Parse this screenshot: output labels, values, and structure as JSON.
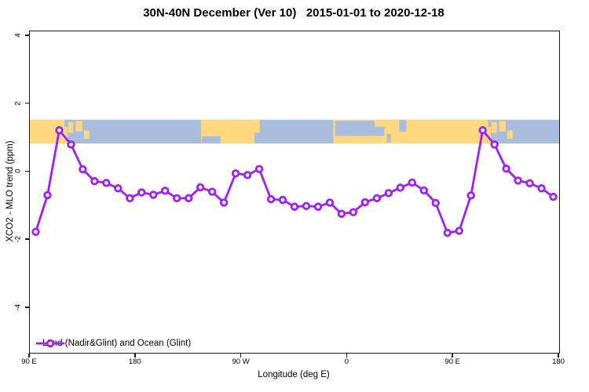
{
  "chart_data": {
    "type": "line",
    "title": "30N-40N December (Ver 10)   2015-01-01 to 2020-12-18",
    "xlabel": "Longitude (deg E)",
    "ylabel": "XCO2 - MLO trend (ppm)",
    "xlim": [
      90,
      540
    ],
    "ylim": [
      -5.32,
      4.14
    ],
    "grid": false,
    "x_ticks": [
      {
        "pos": 90,
        "label": "90 E"
      },
      {
        "pos": 180,
        "label": "180"
      },
      {
        "pos": 270,
        "label": "90 W"
      },
      {
        "pos": 360,
        "label": "0"
      },
      {
        "pos": 450,
        "label": "90 E"
      },
      {
        "pos": 540,
        "label": "180"
      }
    ],
    "y_ticks": [
      {
        "pos": 4,
        "label": "4"
      },
      {
        "pos": 2,
        "label": "2"
      },
      {
        "pos": 0,
        "label": "0"
      },
      {
        "pos": -2,
        "label": "-2"
      },
      {
        "pos": -4,
        "label": "-4"
      }
    ],
    "legend": {
      "position": "bottom-left-inside",
      "label": "Land (Nadir&Glint) and Ocean (Glint)"
    },
    "series": [
      {
        "name": "Land (Nadir&Glint) and Ocean (Glint)",
        "color": "#A020F0",
        "marker": "open-circle",
        "x": [
          95,
          105,
          115,
          125,
          135,
          145,
          155,
          165,
          175,
          185,
          195,
          205,
          215,
          225,
          235,
          245,
          255,
          265,
          275,
          285,
          295,
          305,
          315,
          325,
          335,
          345,
          355,
          365,
          375,
          385,
          395,
          405,
          415,
          425,
          435,
          445,
          455,
          465,
          475,
          485,
          495,
          505,
          515,
          525,
          535
        ],
        "y": [
          -1.76,
          -0.68,
          1.23,
          0.81,
          0.08,
          -0.27,
          -0.32,
          -0.48,
          -0.77,
          -0.6,
          -0.67,
          -0.55,
          -0.77,
          -0.77,
          -0.45,
          -0.58,
          -0.9,
          -0.04,
          -0.09,
          0.09,
          -0.8,
          -0.82,
          -1.02,
          -1.0,
          -1.02,
          -0.9,
          -1.23,
          -1.18,
          -0.89,
          -0.77,
          -0.62,
          -0.46,
          -0.31,
          -0.54,
          -0.91,
          -1.79,
          -1.73,
          -0.69,
          1.23,
          0.81,
          0.1,
          -0.25,
          -0.33,
          -0.48,
          -0.73
        ]
      }
    ],
    "map_band": {
      "description": "world coastline strip for 30N-40N drawn between y values",
      "y_top": 1.54,
      "y_bottom": 0.84,
      "ocean_color": "#A8BCDC",
      "land_color": "#FDD87E",
      "land": [
        {
          "name": "asia-east",
          "x1": 90,
          "x2": 122,
          "t": 0,
          "b": 1
        },
        {
          "name": "korea",
          "x1": 122.5,
          "x2": 127,
          "t": 0.1,
          "b": 0.55
        },
        {
          "name": "japan-north",
          "x1": 129,
          "x2": 134.5,
          "t": 0.05,
          "b": 0.5
        },
        {
          "name": "japan-south",
          "x1": 136,
          "x2": 140.5,
          "t": 0.45,
          "b": 0.8
        },
        {
          "name": "north-america",
          "x1": 235.5,
          "x2": 281,
          "t": 0,
          "b": 1
        },
        {
          "name": "north-america-east",
          "x1": 281,
          "x2": 285.5,
          "t": 0,
          "b": 0.55
        },
        {
          "name": "africa-eurasia",
          "x1": 348,
          "x2": 482,
          "t": 0,
          "b": 1
        },
        {
          "name": "iberia",
          "x1": 350.5,
          "x2": 361,
          "t": 0,
          "b": 0.3
        },
        {
          "name": "italy",
          "x1": 371.5,
          "x2": 374,
          "t": 0.1,
          "b": 0.55
        },
        {
          "name": "korea-repeat",
          "x1": 482.5,
          "x2": 487,
          "t": 0.1,
          "b": 0.55
        },
        {
          "name": "japan-north-repeat",
          "x1": 489,
          "x2": 494.5,
          "t": 0.05,
          "b": 0.5
        },
        {
          "name": "japan-south-repeat",
          "x1": 496,
          "x2": 500.5,
          "t": 0.45,
          "b": 0.8
        }
      ],
      "water": [
        {
          "name": "yellow-sea",
          "x1": 119.5,
          "x2": 122.5,
          "t": 0,
          "b": 0.3
        },
        {
          "name": "baja-pacific",
          "x1": 236,
          "x2": 252,
          "t": 0.7,
          "b": 1
        },
        {
          "name": "mediterranean",
          "x1": 349.5,
          "x2": 383,
          "t": 0.05,
          "b": 0.68
        },
        {
          "name": "mediterranean-east",
          "x1": 383,
          "x2": 391.5,
          "t": 0.3,
          "b": 0.68
        },
        {
          "name": "persian-gulf",
          "x1": 393.5,
          "x2": 397,
          "t": 0.6,
          "b": 0.95
        },
        {
          "name": "caspian-sea",
          "x1": 404,
          "x2": 410,
          "t": 0.02,
          "b": 0.5
        },
        {
          "name": "yellow-sea-repeat",
          "x1": 479.5,
          "x2": 482,
          "t": 0,
          "b": 0.3
        }
      ]
    }
  }
}
